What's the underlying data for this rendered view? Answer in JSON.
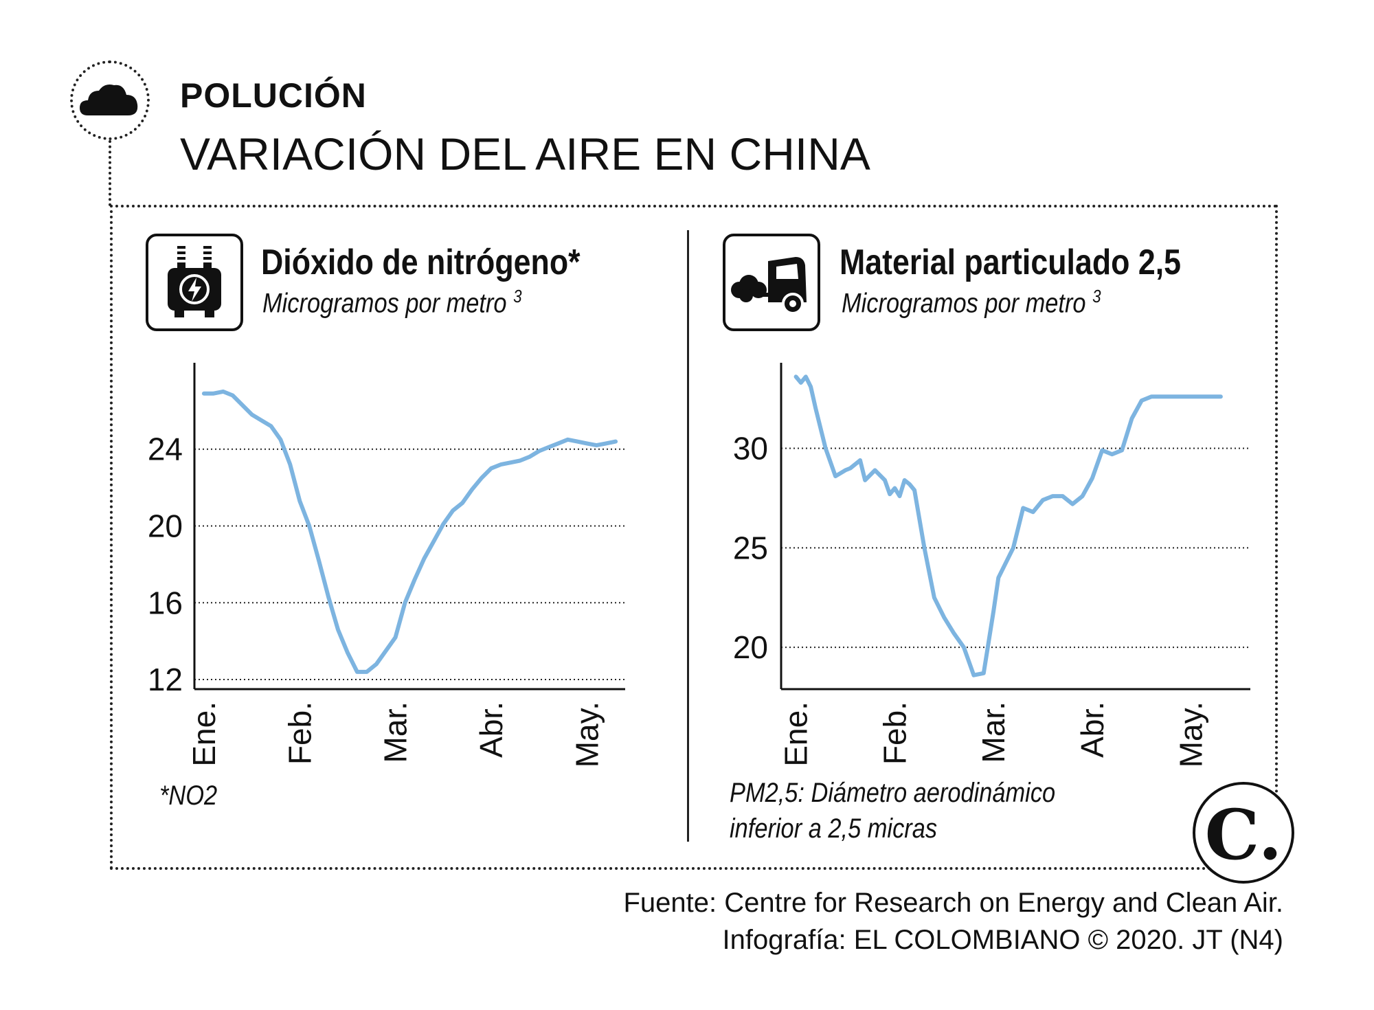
{
  "header": {
    "kicker": "POLUCIÓN",
    "headline": "VARIACIÓN DEL AIRE EN CHINA",
    "icon": "cloud-icon"
  },
  "colors": {
    "line": "#7db4e0",
    "ink": "#111111",
    "grid": "#222222"
  },
  "left": {
    "icon": "transformer-lightning-icon",
    "title": "Dióxido de nitrógeno*",
    "subtitle": "Microgramos por metro",
    "superscript": "3",
    "note": "*NO2"
  },
  "right": {
    "icon": "car-exhaust-icon",
    "title": "Material particulado 2,5",
    "subtitle": "Microgramos por metro",
    "superscript": "3",
    "note_line1": "PM2,5: Diámetro aerodinámico",
    "note_line2": "inferior a 2,5 micras"
  },
  "footer": {
    "source": "Fuente: Centre for Research on Energy and Clean Air.",
    "credit": "Infografía: EL COLOMBIANO © 2020. JT (N4)",
    "logo_letter": "C."
  },
  "chart_data": [
    {
      "type": "line",
      "title": "Dióxido de nitrógeno*",
      "ylabel": "Microgramos por metro 3",
      "categories": [
        "Ene.",
        "Feb.",
        "Mar.",
        "Abr.",
        "May."
      ],
      "yticks": [
        12,
        16,
        20,
        24
      ],
      "ylim": [
        11.5,
        28.5
      ],
      "xlim": [
        -0.1,
        4.4
      ],
      "grid": "horizontal dotted",
      "series": [
        {
          "name": "NO2",
          "x": [
            0,
            0.1,
            0.2,
            0.3,
            0.4,
            0.5,
            0.6,
            0.7,
            0.8,
            0.9,
            1.0,
            1.1,
            1.2,
            1.3,
            1.4,
            1.5,
            1.6,
            1.7,
            1.8,
            1.9,
            2.0,
            2.1,
            2.2,
            2.3,
            2.4,
            2.5,
            2.6,
            2.7,
            2.8,
            2.9,
            3.0,
            3.1,
            3.2,
            3.3,
            3.4,
            3.5,
            3.6,
            3.7,
            3.8,
            3.9,
            4.0,
            4.1,
            4.2,
            4.3
          ],
          "values": [
            26.9,
            26.9,
            27.0,
            26.8,
            26.3,
            25.8,
            25.5,
            25.2,
            24.5,
            23.2,
            21.3,
            20.0,
            18.2,
            16.3,
            14.6,
            13.4,
            12.4,
            12.4,
            12.8,
            13.5,
            14.2,
            16.0,
            17.2,
            18.3,
            19.2,
            20.1,
            20.8,
            21.2,
            21.9,
            22.5,
            23.0,
            23.2,
            23.3,
            23.4,
            23.6,
            23.9,
            24.1,
            24.3,
            24.5,
            24.4,
            24.3,
            24.2,
            24.3,
            24.4
          ]
        }
      ]
    },
    {
      "type": "line",
      "title": "Material particulado 2,5",
      "ylabel": "Microgramos por metro 3",
      "categories": [
        "Ene.",
        "Feb.",
        "Mar.",
        "Abr.",
        "May."
      ],
      "yticks": [
        20,
        25,
        30
      ],
      "ylim": [
        17.9,
        34.3
      ],
      "xlim": [
        -0.15,
        4.6
      ],
      "grid": "horizontal dotted",
      "series": [
        {
          "name": "PM2,5",
          "x": [
            0,
            0.05,
            0.1,
            0.15,
            0.2,
            0.3,
            0.4,
            0.5,
            0.55,
            0.65,
            0.7,
            0.8,
            0.9,
            0.95,
            1.0,
            1.05,
            1.1,
            1.15,
            1.2,
            1.3,
            1.4,
            1.5,
            1.6,
            1.7,
            1.8,
            1.9,
            2.0,
            2.05,
            2.1,
            2.2,
            2.3,
            2.4,
            2.5,
            2.6,
            2.7,
            2.8,
            2.9,
            3.0,
            3.1,
            3.2,
            3.3,
            3.4,
            3.5,
            3.6,
            3.7,
            3.8,
            3.9,
            4.0,
            4.1,
            4.2,
            4.3
          ],
          "values": [
            33.6,
            33.3,
            33.6,
            33.1,
            32.0,
            30.0,
            28.6,
            28.9,
            29.0,
            29.4,
            28.4,
            28.9,
            28.4,
            27.7,
            28.0,
            27.6,
            28.4,
            28.2,
            27.9,
            25.0,
            22.5,
            21.5,
            20.7,
            20.0,
            18.6,
            18.7,
            21.8,
            23.5,
            24.0,
            25.0,
            27.0,
            26.8,
            27.4,
            27.6,
            27.6,
            27.2,
            27.6,
            28.5,
            29.9,
            29.7,
            29.9,
            31.5,
            32.4,
            32.6,
            32.6,
            32.6,
            32.6,
            32.6,
            32.6,
            32.6,
            32.6
          ]
        }
      ]
    }
  ]
}
